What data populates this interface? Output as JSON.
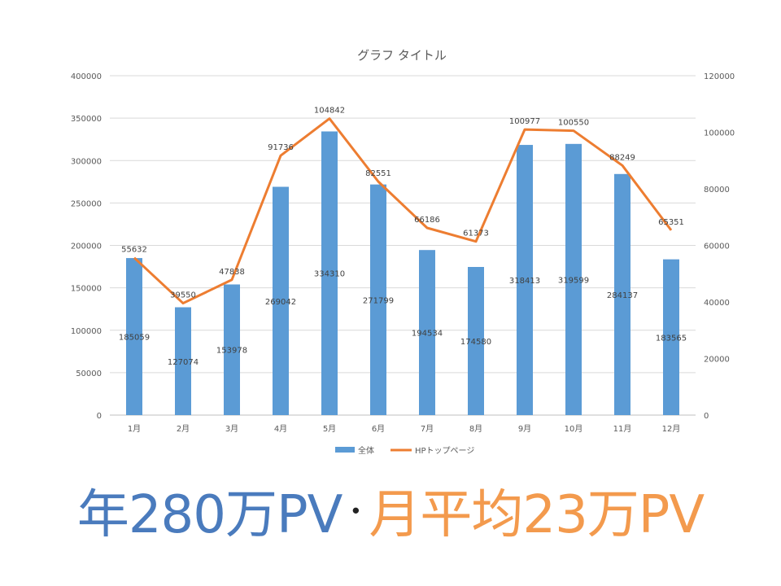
{
  "colors": {
    "bar": "#5b9bd5",
    "line": "#ed7d31",
    "grid": "#d9d9d9",
    "axis": "#bfbfbf"
  },
  "chart_data": {
    "type": "bar+line",
    "title": "グラフ タイトル",
    "categories": [
      "1月",
      "2月",
      "3月",
      "4月",
      "5月",
      "6月",
      "7月",
      "8月",
      "9月",
      "10月",
      "11月",
      "12月"
    ],
    "series": [
      {
        "name": "全体",
        "type": "bar",
        "axis": "left",
        "values": [
          185059,
          127074,
          153978,
          269042,
          334310,
          271799,
          194534,
          174580,
          318413,
          319599,
          284137,
          183565
        ]
      },
      {
        "name": "HPトップページ",
        "type": "line",
        "axis": "right",
        "values": [
          55632,
          39550,
          47838,
          91736,
          104842,
          82551,
          66186,
          61373,
          100977,
          100550,
          88249,
          65351
        ]
      }
    ],
    "y_left": {
      "min": 0,
      "max": 400000,
      "step": 50000
    },
    "y_right": {
      "min": 0,
      "max": 120000,
      "step": 20000
    },
    "grid": true,
    "legend": "bottom"
  },
  "headline": {
    "part1": "年280万PV",
    "separator": "･",
    "part2": "月平均23万PV"
  }
}
